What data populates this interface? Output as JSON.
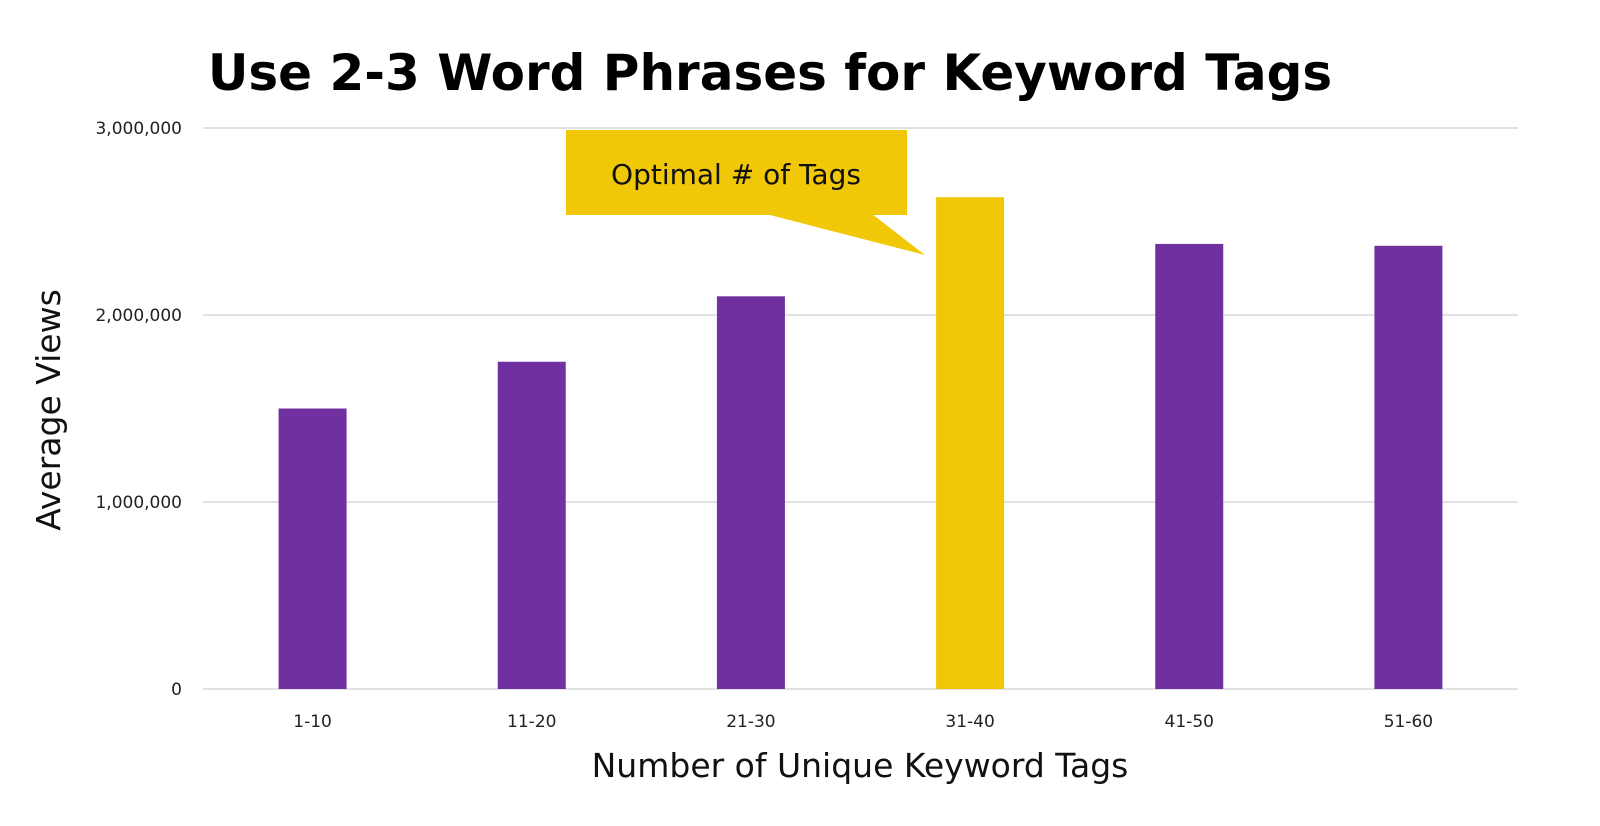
{
  "chart_data": {
    "type": "bar",
    "title": "Use 2-3 Word Phrases for Keyword Tags",
    "xlabel": "Number of Unique Keyword Tags",
    "ylabel": "Average Views",
    "categories": [
      "1-10",
      "11-20",
      "21-30",
      "31-40",
      "41-50",
      "51-60"
    ],
    "values": [
      1500000,
      1750000,
      2100000,
      2630000,
      2380000,
      2370000
    ],
    "ylim": [
      0,
      3000000
    ],
    "yticks": [
      0,
      1000000,
      2000000,
      3000000
    ],
    "ytick_labels": [
      "0",
      "1,000,000",
      "2,000,000",
      "3,000,000"
    ],
    "grid": "horizontal",
    "highlight_index": 3,
    "annotation": {
      "text": "Optimal # of Tags",
      "category": "31-40"
    },
    "colors": {
      "bar": "#7030a0",
      "highlight": "#f0c808",
      "grid": "#d9d9d9"
    }
  }
}
